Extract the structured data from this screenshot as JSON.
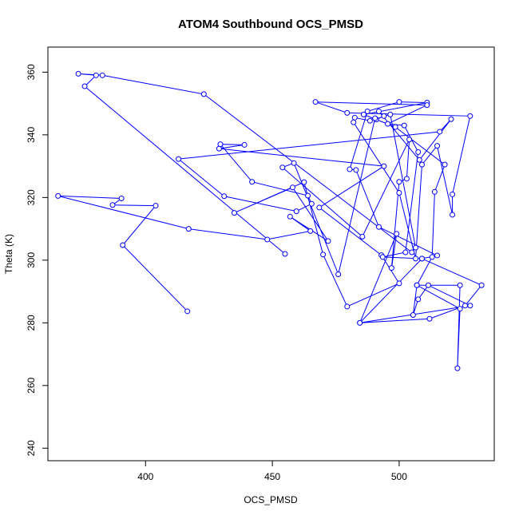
{
  "chart_data": {
    "type": "line",
    "title": "ATOM4 Southbound OCS_PMSD",
    "xlabel": "OCS_PMSD",
    "ylabel": "Theta (K)",
    "xlim": [
      361.5,
      537.5
    ],
    "ylim": [
      236,
      368
    ],
    "xticks": [
      400,
      450,
      500
    ],
    "yticks": [
      240,
      260,
      280,
      300,
      320,
      340,
      360
    ],
    "grid": false,
    "colors": {
      "series": "#0000ff",
      "axis": "#000000"
    },
    "series": [
      {
        "marker": "open-circle",
        "points": [
          [
            416.5,
            283.7
          ],
          [
            391.0,
            304.8
          ],
          [
            404.0,
            317.4
          ],
          [
            387.0,
            317.6
          ],
          [
            390.5,
            319.7
          ],
          [
            365.5,
            320.5
          ],
          [
            417.0,
            310.0
          ],
          [
            448.0,
            306.6
          ],
          [
            465.0,
            309.3
          ],
          [
            457.0,
            313.9
          ],
          [
            472.0,
            306.1
          ],
          [
            458.0,
            323.2
          ],
          [
            435.0,
            315.1
          ],
          [
            462.5,
            324.9
          ],
          [
            470.0,
            301.8
          ],
          [
            479.5,
            285.2
          ],
          [
            500.0,
            292.6
          ],
          [
            493.0,
            301.6
          ],
          [
            468.5,
            316.8
          ],
          [
            494.0,
            330.0
          ],
          [
            429.0,
            335.6
          ],
          [
            439.0,
            336.8
          ],
          [
            429.5,
            337.0
          ],
          [
            442.0,
            325.0
          ],
          [
            464.0,
            320.6
          ],
          [
            465.5,
            318.0
          ],
          [
            459.5,
            315.6
          ],
          [
            431.0,
            320.4
          ],
          [
            413.0,
            332.3
          ],
          [
            516.0,
            341.0
          ],
          [
            520.5,
            345.0
          ],
          [
            508.0,
            332.0
          ],
          [
            492.0,
            347.5
          ],
          [
            494.0,
            346.0
          ],
          [
            491.0,
            344.9
          ],
          [
            490.5,
            345.3
          ],
          [
            476.0,
            295.5
          ],
          [
            458.5,
            331.0
          ],
          [
            454.0,
            329.6
          ],
          [
            485.5,
            307.5
          ],
          [
            504.0,
            338.5
          ],
          [
            503.0,
            326.0
          ],
          [
            500.0,
            325.0
          ],
          [
            497.0,
            297.5
          ],
          [
            499.0,
            308.4
          ],
          [
            484.5,
            280.0
          ],
          [
            512.0,
            281.3
          ],
          [
            526.0,
            285.5
          ],
          [
            532.5,
            292.0
          ],
          [
            509.0,
            300.5
          ],
          [
            515.0,
            301.5
          ],
          [
            492.0,
            310.6
          ],
          [
            483.0,
            328.8
          ],
          [
            480.5,
            329.0
          ],
          [
            487.5,
            347.5
          ],
          [
            500.0,
            350.5
          ],
          [
            511.0,
            350.3
          ],
          [
            486.0,
            346.5
          ],
          [
            498.5,
            342.5
          ],
          [
            518.0,
            330.5
          ],
          [
            514.0,
            321.8
          ],
          [
            513.0,
            301.0
          ],
          [
            507.0,
            292.0
          ],
          [
            524.0,
            284.5
          ],
          [
            523.0,
            265.5
          ],
          [
            524.0,
            292.0
          ],
          [
            507.0,
            292.0
          ],
          [
            505.5,
            282.5
          ],
          [
            507.5,
            287.5
          ],
          [
            511.5,
            292.0
          ],
          [
            528.0,
            285.5
          ],
          [
            484.5,
            280.0
          ],
          [
            509.0,
            300.5
          ],
          [
            493.5,
            301.0
          ],
          [
            502.5,
            302.5
          ],
          [
            507.5,
            334.5
          ],
          [
            502.0,
            343.0
          ],
          [
            495.5,
            343.5
          ],
          [
            511.0,
            349.5
          ],
          [
            467.0,
            350.5
          ],
          [
            479.5,
            347.0
          ],
          [
            528.0,
            346.0
          ],
          [
            521.0,
            321.0
          ],
          [
            521.0,
            314.5
          ],
          [
            515.0,
            336.5
          ],
          [
            509.0,
            330.5
          ],
          [
            506.5,
            300.5
          ],
          [
            500.0,
            321.5
          ],
          [
            482.0,
            344.0
          ],
          [
            482.5,
            345.5
          ],
          [
            488.5,
            344.5
          ],
          [
            496.5,
            346.5
          ],
          [
            506.5,
            304.0
          ],
          [
            505.0,
            302.5
          ],
          [
            423.0,
            353.0
          ],
          [
            383.0,
            359.0
          ],
          [
            373.5,
            359.5
          ],
          [
            380.5,
            359.0
          ],
          [
            376.0,
            355.5
          ],
          [
            455.0,
            302.0
          ]
        ]
      }
    ]
  }
}
